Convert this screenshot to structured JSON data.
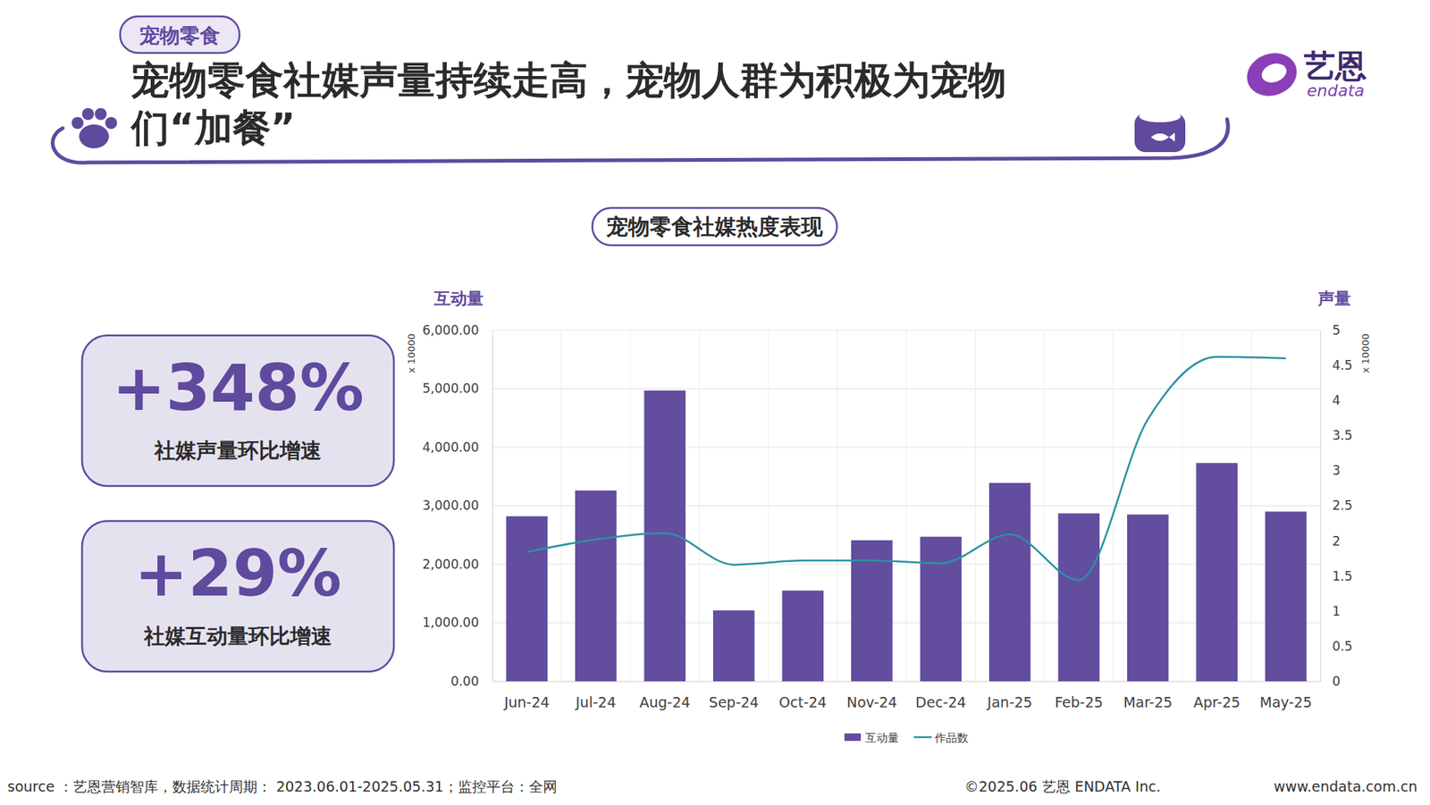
{
  "header": {
    "tag": "宠物零食",
    "title": "宠物零食社媒声量持续走高，宠物人群为积极为宠物们“加餐”"
  },
  "logo": {
    "name": "艺恩",
    "brand": "endata"
  },
  "stats": [
    {
      "value": "+348%",
      "label": "社媒声量环比增速"
    },
    {
      "value": "+29%",
      "label": "社媒互动量环比增速"
    }
  ],
  "chart_data": {
    "type": "bar",
    "title": "宠物零食社媒热度表现",
    "ylabel": "互动量",
    "y2label": "声量",
    "annotations": [
      {
        "text": "x 10000",
        "axis": "y"
      },
      {
        "text": "x 10000",
        "axis": "y2"
      }
    ],
    "categories": [
      "Jun-24",
      "Jul-24",
      "Aug-24",
      "Sep-24",
      "Oct-24",
      "Nov-24",
      "Dec-24",
      "Jan-25",
      "Feb-25",
      "Mar-25",
      "Apr-25",
      "May-25"
    ],
    "series": [
      {
        "name": "互动量",
        "type": "bar",
        "color": "#634d9f",
        "values": [
          2820,
          3260,
          4970,
          1210,
          1550,
          2410,
          2470,
          3390,
          2870,
          2850,
          3730,
          2900
        ]
      },
      {
        "name": "作品数",
        "type": "line",
        "axis": "y2",
        "color": "#2a92a3",
        "line_style": "solid",
        "marker": "none",
        "values": [
          1.84,
          2.02,
          2.11,
          1.66,
          1.72,
          1.72,
          1.68,
          2.09,
          1.44,
          3.73,
          4.62,
          4.6
        ]
      }
    ],
    "ylim": [
      0,
      6000
    ],
    "yticks": [
      {
        "value": 0,
        "label": "0.00"
      },
      {
        "value": 1000,
        "label": "1,000.00"
      },
      {
        "value": 2000,
        "label": "2,000.00"
      },
      {
        "value": 3000,
        "label": "3,000.00"
      },
      {
        "value": 4000,
        "label": "4,000.00"
      },
      {
        "value": 5000,
        "label": "5,000.00"
      },
      {
        "value": 6000,
        "label": "6,000.00"
      }
    ],
    "y2lim": [
      0,
      5
    ],
    "y2ticks": [
      0,
      0.5,
      1,
      1.5,
      2,
      2.5,
      3,
      3.5,
      4,
      4.5,
      5
    ],
    "grid": true,
    "legend": "bottom"
  },
  "footer": {
    "source": "source ：艺恩营销智库，数据统计周期： 2023.06.01-2025.05.31；监控平台：全网",
    "copyright": "©2025.06  艺恩 ENDATA Inc.",
    "website": "www.endata.com.cn"
  }
}
